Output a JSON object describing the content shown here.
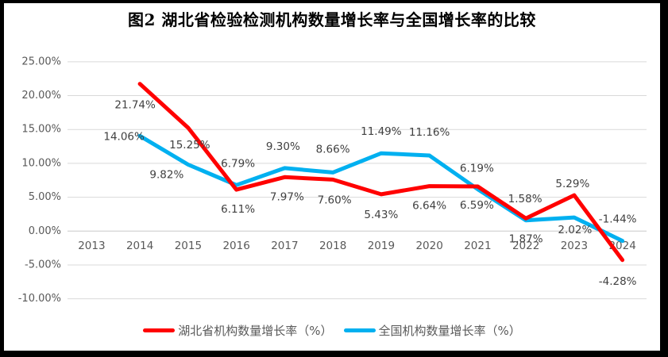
{
  "chart_data": {
    "type": "line",
    "title": "图2  湖北省检验检测机构数量增长率与全国增长率的比较",
    "x": [
      "2013",
      "2014",
      "2015",
      "2016",
      "2017",
      "2018",
      "2019",
      "2020",
      "2021",
      "2022",
      "2023",
      "2024"
    ],
    "series": [
      {
        "name": "湖北省机构数量增长率（%）",
        "color": "#FF0000",
        "values": [
          null,
          21.74,
          15.25,
          6.11,
          7.97,
          7.6,
          5.43,
          6.64,
          6.59,
          1.87,
          5.29,
          -4.28
        ],
        "labels": [
          "",
          "21.74%",
          "15.25%",
          "6.11%",
          "7.97%",
          "7.60%",
          "5.43%",
          "6.64%",
          "6.59%",
          "1.87%",
          "5.29%",
          "-4.28%"
        ]
      },
      {
        "name": "全国机构数量增长率（%）",
        "color": "#00B0F0",
        "values": [
          null,
          14.06,
          9.82,
          6.79,
          9.3,
          8.66,
          11.49,
          11.16,
          6.19,
          1.58,
          2.02,
          -1.44
        ],
        "labels": [
          "",
          "14.06%",
          "9.82%",
          "6.79%",
          "9.30%",
          "8.66%",
          "11.49%",
          "11.16%",
          "6.19%",
          "1.58%",
          "2.02%",
          "-1.44%"
        ]
      }
    ],
    "yticks": [
      "25.00%",
      "20.00%",
      "15.00%",
      "10.00%",
      "5.00%",
      "0.00%",
      "-5.00%",
      "-10.00%"
    ],
    "ytick_values": [
      25,
      20,
      15,
      10,
      5,
      0,
      -5,
      -10
    ],
    "ylim": [
      -10,
      25
    ],
    "grid": true,
    "data_labels": true,
    "legend_position": "bottom"
  },
  "colors": {
    "gridline": "#D9D9D9",
    "zero_axis": "#C9C9C9",
    "tick_text": "#595959",
    "data_label_text": "#404040",
    "frame": "#000000",
    "background": "#FFFFFF"
  }
}
